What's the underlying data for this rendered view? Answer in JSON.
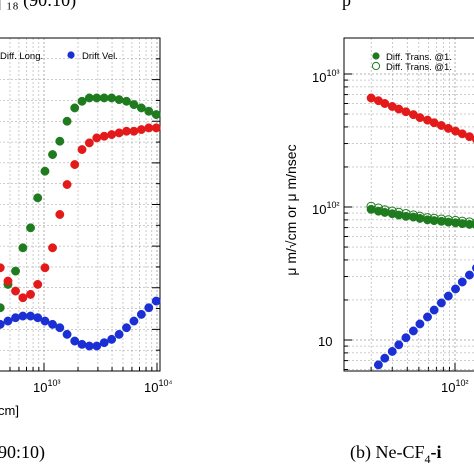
{
  "top_text_left": "| ₁₈ (90:10)",
  "top_text_right": "p",
  "colors": {
    "green": "#1e7b1e",
    "red": "#e41a1a",
    "blue": "#1a2fd4",
    "grid": "#999999",
    "frame": "#000000"
  },
  "chart_data": [
    {
      "type": "scatter",
      "panel": "left",
      "caption": "90:10)",
      "xlabel": "cm]",
      "xscale": "log",
      "xticks": [
        "10³",
        "10⁴"
      ],
      "legend": [
        "Diff. Long.",
        "Drift Vel."
      ],
      "series": [
        {
          "name": "Diff. Long.",
          "color": "green",
          "fill": "solid",
          "x": [
            300,
            350,
            410,
            480,
            560,
            650,
            760,
            880,
            1020,
            1190,
            1380,
            1600,
            1870,
            2170,
            2520,
            2930,
            3410,
            3970,
            4620,
            5370,
            6250,
            7270,
            8460,
            9840
          ],
          "y": [
            0.22,
            0.16,
            0.19,
            0.26,
            0.3,
            0.37,
            0.43,
            0.52,
            0.6,
            0.65,
            0.69,
            0.75,
            0.79,
            0.81,
            0.82,
            0.82,
            0.82,
            0.82,
            0.815,
            0.81,
            0.8,
            0.79,
            0.78,
            0.77
          ]
        },
        {
          "name": "",
          "color": "red",
          "fill": "solid",
          "x": [
            300,
            350,
            410,
            480,
            560,
            650,
            760,
            880,
            1020,
            1190,
            1380,
            1600,
            1870,
            2170,
            2520,
            2930,
            3410,
            3970,
            4620,
            5370,
            6250,
            7270,
            8460,
            9840
          ],
          "y": [
            0.37,
            0.35,
            0.31,
            0.27,
            0.24,
            0.22,
            0.23,
            0.26,
            0.31,
            0.37,
            0.47,
            0.56,
            0.62,
            0.665,
            0.685,
            0.7,
            0.705,
            0.71,
            0.715,
            0.72,
            0.72,
            0.725,
            0.73,
            0.73
          ]
        },
        {
          "name": "Drift Vel.",
          "color": "blue",
          "fill": "solid",
          "x": [
            300,
            350,
            410,
            480,
            560,
            650,
            760,
            880,
            1020,
            1190,
            1380,
            1600,
            1870,
            2170,
            2520,
            2930,
            3410,
            3970,
            4620,
            5370,
            6250,
            7270,
            8460,
            9840
          ],
          "y": [
            0.1,
            0.12,
            0.14,
            0.15,
            0.16,
            0.165,
            0.165,
            0.16,
            0.15,
            0.14,
            0.13,
            0.11,
            0.09,
            0.08,
            0.075,
            0.075,
            0.085,
            0.095,
            0.11,
            0.13,
            0.15,
            0.17,
            0.19,
            0.21
          ]
        }
      ]
    },
    {
      "type": "scatter",
      "panel": "right",
      "caption": "(b) Ne-CF",
      "caption_sub": "4",
      "caption_tail": "-i",
      "ylabel": "μ m/√cm or μ m/nsec",
      "xscale": "log",
      "yscale": "log",
      "ylim": [
        5,
        1300
      ],
      "yticks": [
        "10",
        "10²",
        "10³"
      ],
      "xticks": [
        "10²"
      ],
      "legend": [
        "Diff. Trans. @1.",
        "Diff. Trans. @1."
      ],
      "series": [
        {
          "name": "Diff. Trans. @1.",
          "color": "green",
          "fill": "solid",
          "x": [
            20,
            23,
            26,
            30,
            34,
            39,
            45,
            51,
            59,
            67,
            77,
            88,
            101,
            115,
            132,
            151,
            173,
            198,
            226
          ],
          "y": [
            96,
            93,
            91,
            89,
            87,
            85,
            84,
            82,
            80,
            79,
            78,
            77,
            76,
            75,
            74,
            73,
            72,
            71,
            70
          ]
        },
        {
          "name": "Diff. Trans. @1.",
          "color": "green",
          "fill": "open",
          "x": [
            20,
            23,
            26,
            30,
            34,
            39,
            45,
            51,
            59,
            67,
            77,
            88,
            101,
            115,
            132,
            151,
            173,
            198,
            226
          ],
          "y": [
            101,
            98,
            95,
            93,
            91,
            89,
            87,
            85,
            83,
            82,
            81,
            80,
            79,
            78,
            77,
            76,
            75,
            74,
            73
          ]
        },
        {
          "name": "",
          "color": "red",
          "fill": "solid",
          "x": [
            20,
            23,
            26,
            30,
            34,
            39,
            45,
            51,
            59,
            67,
            77,
            88,
            101,
            115,
            132,
            151,
            173,
            198,
            226
          ],
          "y": [
            660,
            630,
            600,
            570,
            545,
            520,
            495,
            470,
            450,
            430,
            410,
            390,
            372,
            355,
            338,
            322,
            306,
            290,
            275
          ]
        },
        {
          "name": "",
          "color": "blue",
          "fill": "solid",
          "x": [
            23,
            26,
            30,
            34,
            39,
            45,
            51,
            59,
            67,
            77,
            88,
            101,
            115,
            132,
            151,
            173,
            198,
            226
          ],
          "y": [
            6.5,
            7.3,
            8.2,
            9.2,
            10.4,
            11.7,
            13.2,
            14.9,
            16.8,
            19.0,
            21.4,
            24.2,
            27.3,
            30.8,
            34.8,
            39.2,
            44.3,
            50.0
          ]
        }
      ]
    }
  ]
}
